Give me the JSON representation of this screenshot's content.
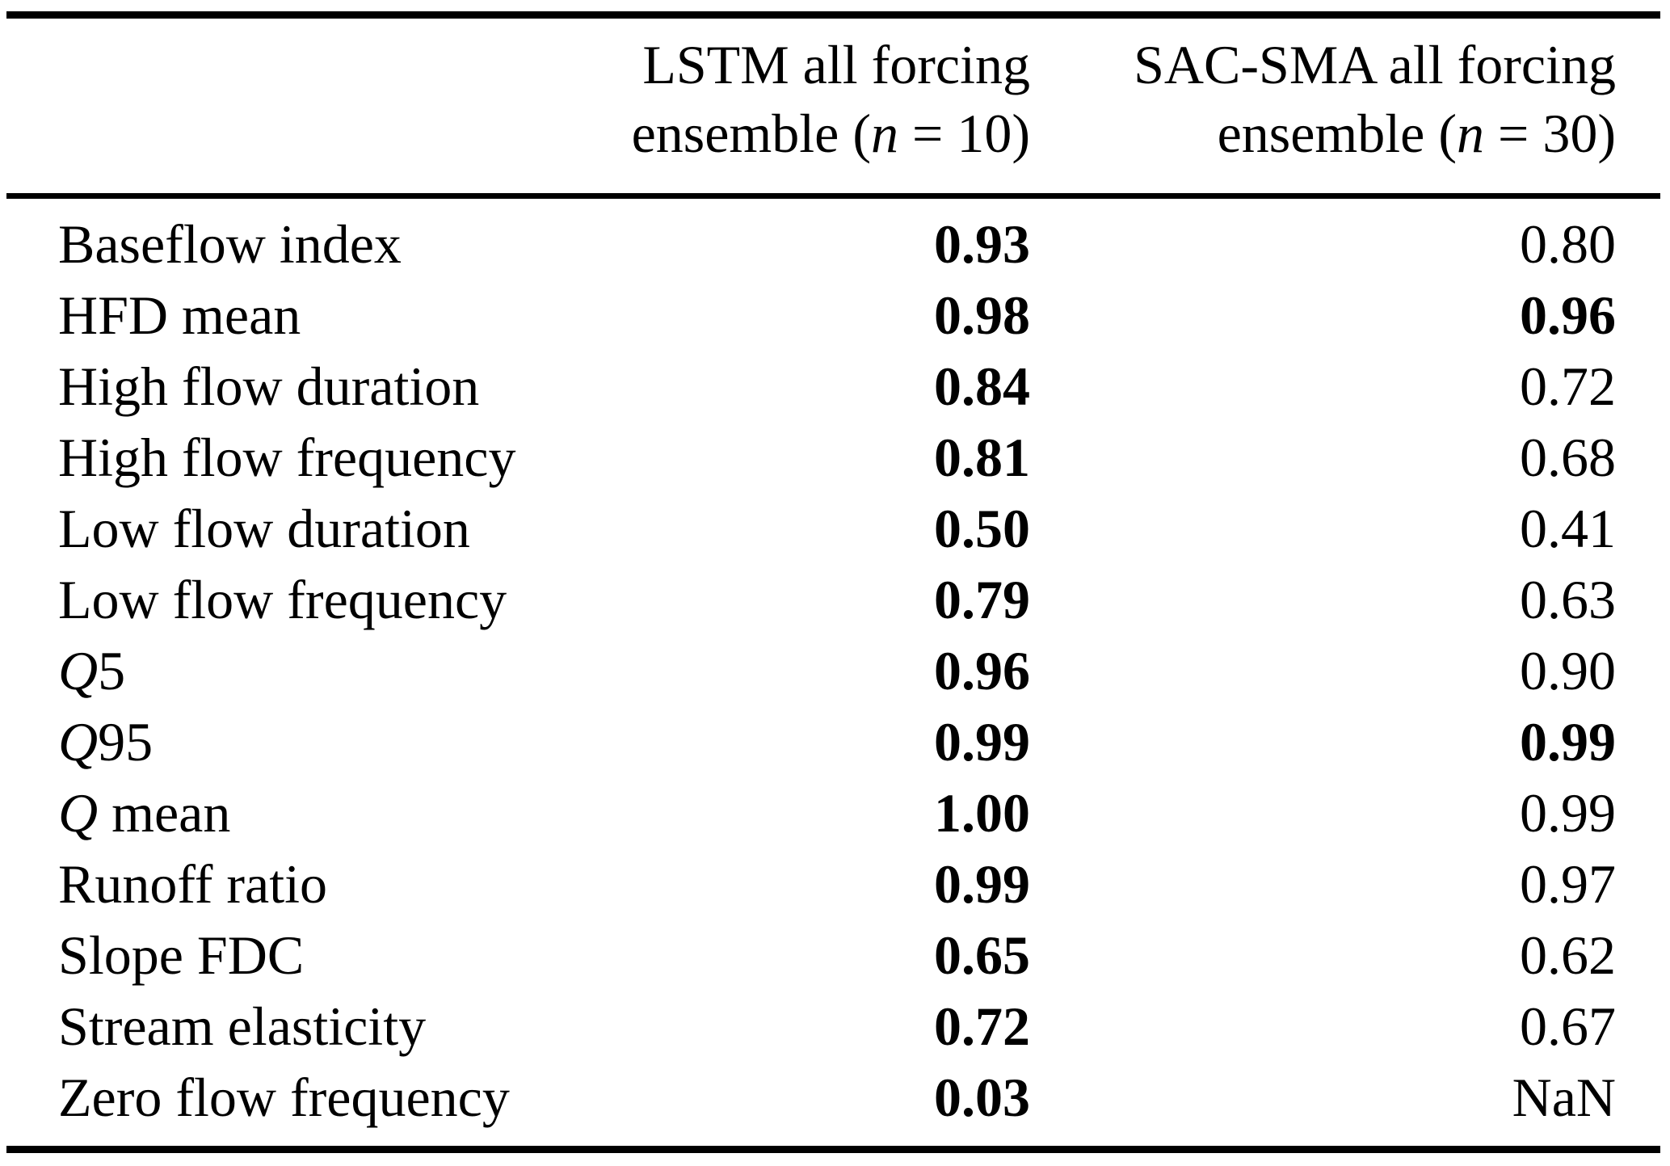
{
  "table": {
    "background_color": "#ffffff",
    "text_color": "#000000",
    "header": {
      "col_lstm": {
        "line1": "LSTM all forcing",
        "line2_pre": "ensemble (",
        "line2_var": "n",
        "line2_post": " = 10)"
      },
      "col_sac": {
        "line1": "SAC-SMA all forcing",
        "line2_pre": "ensemble (",
        "line2_var": "n",
        "line2_post": " = 30)"
      }
    },
    "rows": [
      {
        "label_italic": "",
        "label": "Baseflow index",
        "lstm": "0.93",
        "lstm_bold": true,
        "sac": "0.80",
        "sac_bold": false
      },
      {
        "label_italic": "",
        "label": "HFD mean",
        "lstm": "0.98",
        "lstm_bold": true,
        "sac": "0.96",
        "sac_bold": true
      },
      {
        "label_italic": "",
        "label": "High flow duration",
        "lstm": "0.84",
        "lstm_bold": true,
        "sac": "0.72",
        "sac_bold": false
      },
      {
        "label_italic": "",
        "label": "High flow frequency",
        "lstm": "0.81",
        "lstm_bold": true,
        "sac": "0.68",
        "sac_bold": false
      },
      {
        "label_italic": "",
        "label": "Low flow duration",
        "lstm": "0.50",
        "lstm_bold": true,
        "sac": "0.41",
        "sac_bold": false
      },
      {
        "label_italic": "",
        "label": "Low flow frequency",
        "lstm": "0.79",
        "lstm_bold": true,
        "sac": "0.63",
        "sac_bold": false
      },
      {
        "label_italic": "Q",
        "label": "5",
        "lstm": "0.96",
        "lstm_bold": true,
        "sac": "0.90",
        "sac_bold": false
      },
      {
        "label_italic": "Q",
        "label": "95",
        "lstm": "0.99",
        "lstm_bold": true,
        "sac": "0.99",
        "sac_bold": true
      },
      {
        "label_italic": "Q",
        "label": " mean",
        "lstm": "1.00",
        "lstm_bold": true,
        "sac": "0.99",
        "sac_bold": false
      },
      {
        "label_italic": "",
        "label": "Runoff ratio",
        "lstm": "0.99",
        "lstm_bold": true,
        "sac": "0.97",
        "sac_bold": false
      },
      {
        "label_italic": "",
        "label": "Slope FDC",
        "lstm": "0.65",
        "lstm_bold": true,
        "sac": "0.62",
        "sac_bold": false
      },
      {
        "label_italic": "",
        "label": "Stream elasticity",
        "lstm": "0.72",
        "lstm_bold": true,
        "sac": "0.67",
        "sac_bold": false
      },
      {
        "label_italic": "",
        "label": "Zero flow frequency",
        "lstm": "0.03",
        "lstm_bold": true,
        "sac": "NaN",
        "sac_bold": false
      }
    ]
  }
}
